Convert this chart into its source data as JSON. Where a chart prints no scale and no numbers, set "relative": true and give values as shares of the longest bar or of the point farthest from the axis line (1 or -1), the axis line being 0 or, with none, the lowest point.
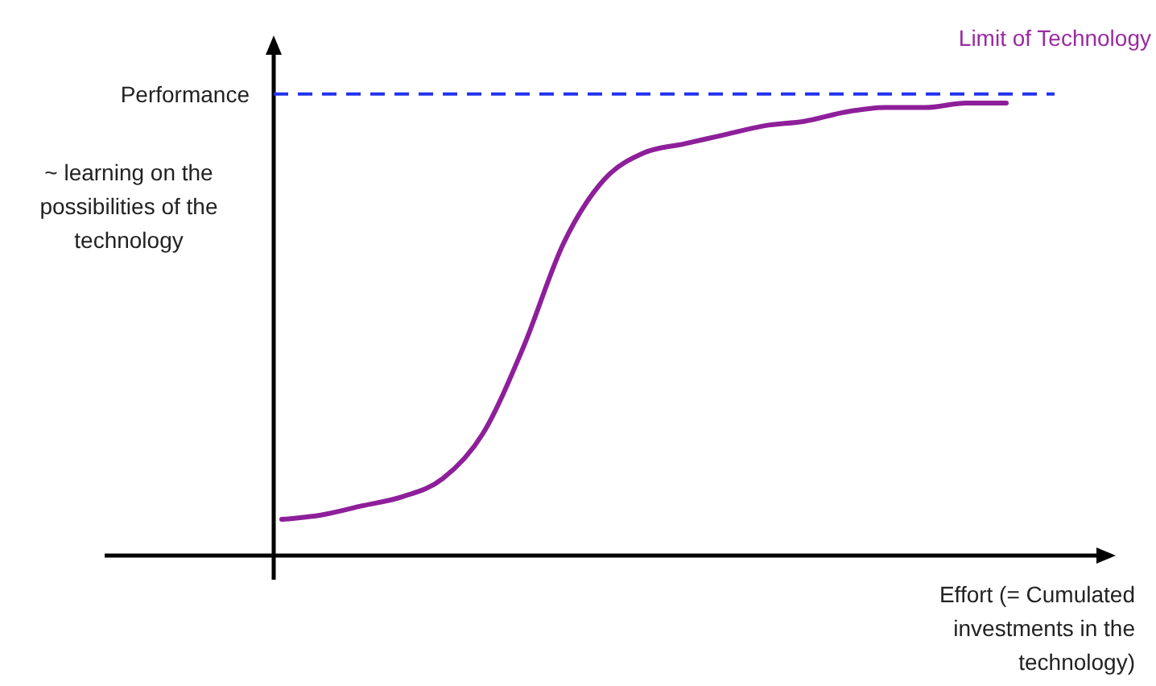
{
  "chart_data": {
    "type": "line",
    "relative": true,
    "ylabel": "Performance",
    "xlabel": "Effort (= Cumulated investments in the technology)",
    "annotations": [
      "~ learning on the possibilities of the technology"
    ],
    "categories": [
      null,
      null,
      null,
      null,
      null,
      null,
      null,
      null,
      null,
      null,
      null,
      null,
      null,
      null,
      null,
      null,
      null,
      null,
      null
    ],
    "series": [
      {
        "color": "#8e1f9a",
        "values": [
          0.08,
          0.09,
          0.11,
          0.13,
          0.17,
          0.27,
          0.46,
          0.69,
          0.83,
          0.89,
          0.91,
          0.93,
          0.95,
          0.96,
          0.98,
          0.99,
          0.99,
          1,
          1
        ]
      }
    ],
    "ref_lines": [
      {
        "axis": "y",
        "value": 1.02,
        "label": "Limit of Technology",
        "color": "#2233ee",
        "line_style": "dashed"
      }
    ],
    "marker": "none",
    "line_style": "solid"
  }
}
